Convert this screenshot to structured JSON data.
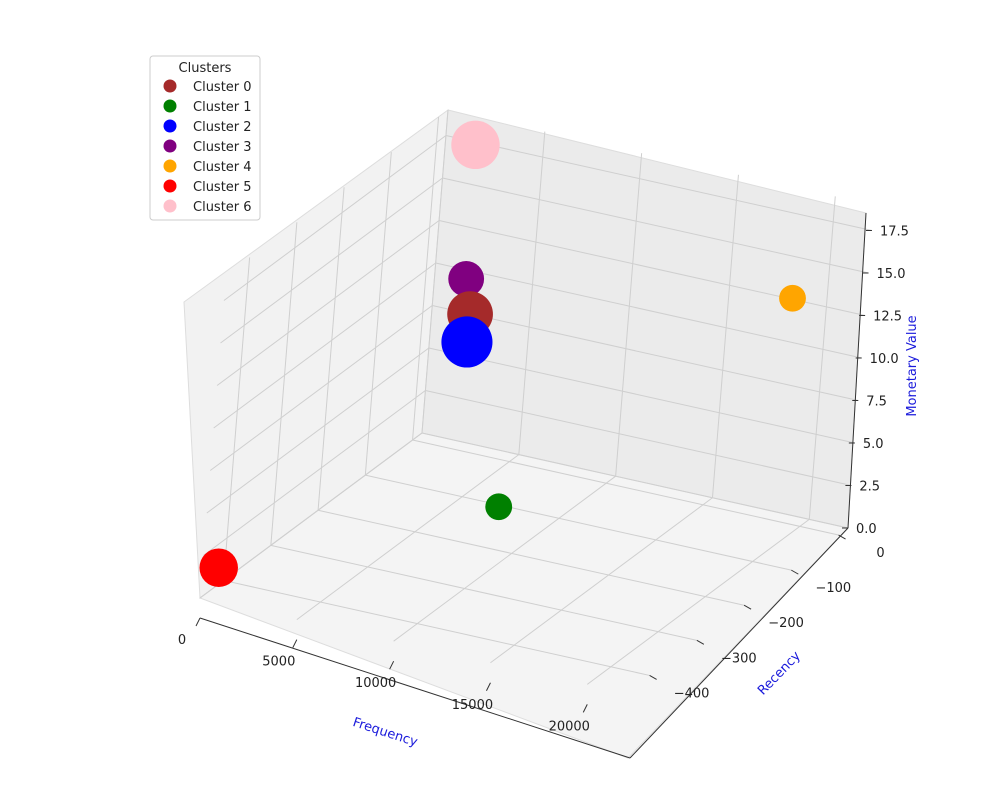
{
  "chart_data": {
    "type": "scatter",
    "projection": "3d",
    "xlabel": "Frequency",
    "ylabel": "Recency",
    "zlabel": "Monetary Value",
    "axis_label_color": "#1a1adb",
    "x_ticks": [
      "0",
      "5000",
      "10000",
      "15000",
      "20000"
    ],
    "y_ticks": [
      "0",
      "−100",
      "−200",
      "−300",
      "−400"
    ],
    "z_ticks": [
      "0.0",
      "2.5",
      "5.0",
      "7.5",
      "10.0",
      "12.5",
      "15.0",
      "17.5"
    ],
    "legend": {
      "title": "Clusters",
      "placement": "top-left"
    },
    "grid": true,
    "series": [
      {
        "name": "Cluster 0",
        "color": "#a52a2a",
        "frequency": 2900,
        "recency": -22,
        "monetary": 8.6,
        "size": 3.3
      },
      {
        "name": "Cluster 1",
        "color": "#008000",
        "frequency": 8700,
        "recency": -180,
        "monetary": 2.0,
        "size": 1.2
      },
      {
        "name": "Cluster 2",
        "color": "#0000ff",
        "frequency": 2900,
        "recency": -24,
        "monetary": 7.0,
        "size": 3.9
      },
      {
        "name": "Cluster 3",
        "color": "#800080",
        "frequency": 2400,
        "recency": -15,
        "monetary": 10.4,
        "size": 2.2
      },
      {
        "name": "Cluster 4",
        "color": "#ffa500",
        "frequency": 20500,
        "recency": -80,
        "monetary": 15.2,
        "size": 1.2
      },
      {
        "name": "Cluster 5",
        "color": "#ff0000",
        "frequency": 150,
        "recency": -420,
        "monetary": 1.2,
        "size": 2.5
      },
      {
        "name": "Cluster 6",
        "color": "#ffc0cb",
        "frequency": 2100,
        "recency": -5,
        "monetary": 18.0,
        "size": 3.6
      }
    ]
  }
}
